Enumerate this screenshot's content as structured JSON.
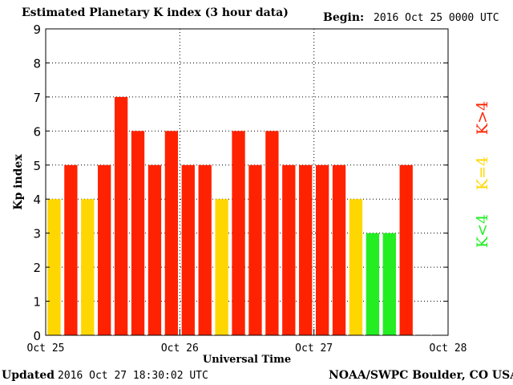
{
  "header": {
    "title": "Estimated Planetary K index (3 hour data)",
    "begin_label": "Begin:",
    "begin_value": "2016 Oct 25 0000 UTC"
  },
  "footer": {
    "updated_label": "Updated",
    "updated_value": "2016 Oct 27 18:30:02 UTC",
    "source": "NOAA/SWPC Boulder, CO USA"
  },
  "legend": {
    "high": "K>4",
    "equal": "K=4",
    "low": "K<4"
  },
  "colors": {
    "high": "#ff2200",
    "equal": "#ffd700",
    "low": "#22ee22",
    "grid": "#000000",
    "background": "#ffffff"
  },
  "chart_data": {
    "type": "bar",
    "title": "Estimated Planetary K index (3 hour data)",
    "xlabel": "Universal Time",
    "ylabel": "Kp index",
    "ylim": [
      0,
      9
    ],
    "yticks": [
      "0",
      "1",
      "2",
      "3",
      "4",
      "5",
      "6",
      "7",
      "8",
      "9"
    ],
    "xticks": [
      "Oct 25",
      "Oct 26",
      "Oct 27",
      "Oct 28"
    ],
    "x_days": 3,
    "slots_per_day": 8,
    "values": [
      4,
      5,
      4,
      5,
      7,
      6,
      5,
      6,
      5,
      5,
      4,
      6,
      5,
      6,
      5,
      5,
      5,
      5,
      4,
      3,
      3,
      5
    ],
    "grid": "dotted",
    "legend_position": "right"
  }
}
